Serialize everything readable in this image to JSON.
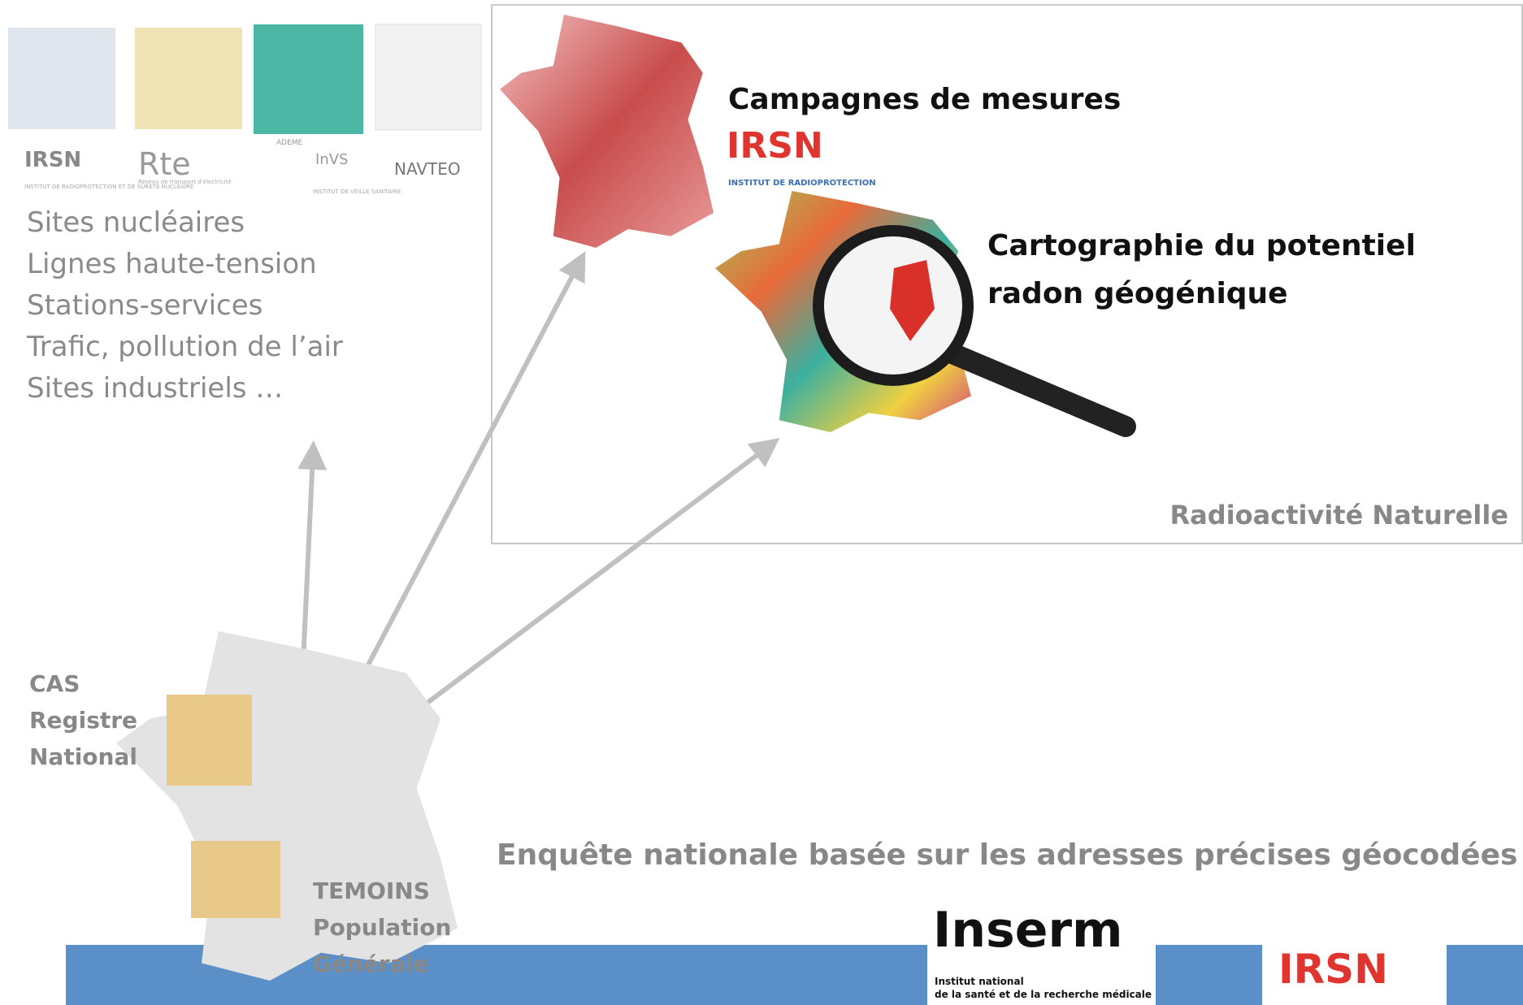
{
  "sources": {
    "logos": [
      "IRSN",
      "Rte",
      "ADEME",
      "InVS",
      "NAVTEO"
    ],
    "logo_captions": [
      "INSTITUT DE RADIOPROTECTION ET DE SÛRETÉ NUCLÉAIRE",
      "Réseau de transport d'électricité",
      "INSTITUT DE VEILLE SANITAIRE"
    ],
    "items": [
      "Sites nucléaires",
      "Lignes haute-tension",
      "Stations-services",
      "Trafic, pollution de l’air",
      "Sites industriels …"
    ]
  },
  "natural_radioactivity": {
    "campaigns": "Campagnes de mesures",
    "irsn_logo": "IRSN",
    "irsn_caption": "INSTITUT DE RADIOPROTECTION",
    "mapping": [
      "Cartographie du potentiel",
      "radon géogénique"
    ],
    "label": "Radioactivité Naturelle"
  },
  "study": {
    "cases": [
      "CAS",
      "Registre",
      "National"
    ],
    "controls": [
      "TEMOINS",
      "Population",
      "Générale"
    ],
    "survey": "Enquête nationale basée sur les adresses précises géocodées"
  },
  "footer": {
    "inserm": "Inserm",
    "inserm_caption": [
      "Institut national",
      "de la santé et de la recherche médicale"
    ],
    "irsn": "IRSN"
  }
}
